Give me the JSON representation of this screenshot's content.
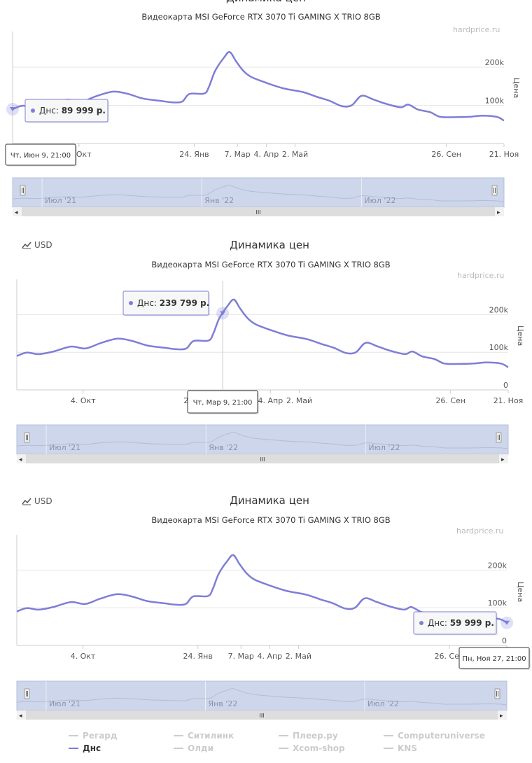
{
  "usd_label": "USD",
  "title": "Динамика цен",
  "subtitle": "Видеокарта MSI GeForce RTX 3070 Ti GAMING X TRIO 8GB",
  "credits": "hardprice.ru",
  "y_axis_title": "Цена",
  "colors": {
    "series": "#7e7ed8",
    "grid": "#e6e6e6",
    "navigator": "#cdd6ea",
    "scrollbar": "#dddddd"
  },
  "chart_data": {
    "type": "line",
    "xlabel": "",
    "ylabel": "Цена",
    "ylim": [
      0,
      290000
    ],
    "y_ticks": [
      {
        "value": 0,
        "label": "0"
      },
      {
        "value": 100000,
        "label": "100k"
      },
      {
        "value": 200000,
        "label": "200k"
      }
    ],
    "x_ticks": [
      {
        "date": "2021-10-04",
        "label": "4. Окт"
      },
      {
        "date": "2022-01-24",
        "label": "24. Янв"
      },
      {
        "date": "2022-03-07",
        "label": "7. Мар"
      },
      {
        "date": "2022-04-04",
        "label": "4. Апр"
      },
      {
        "date": "2022-05-02",
        "label": "2. Май"
      },
      {
        "date": "2022-09-26",
        "label": "26. Сен"
      },
      {
        "date": "2022-11-21",
        "label": "21. Ноя"
      }
    ],
    "navigator_labels": [
      "Июл '21",
      "Янв '22",
      "Июл '22"
    ],
    "series": [
      {
        "name": "Днс",
        "points": [
          [
            0.0,
            89999
          ],
          [
            0.02,
            99000
          ],
          [
            0.045,
            95000
          ],
          [
            0.075,
            102000
          ],
          [
            0.11,
            115000
          ],
          [
            0.14,
            110000
          ],
          [
            0.17,
            124000
          ],
          [
            0.205,
            136000
          ],
          [
            0.235,
            130000
          ],
          [
            0.265,
            118000
          ],
          [
            0.3,
            112000
          ],
          [
            0.325,
            108000
          ],
          [
            0.345,
            110000
          ],
          [
            0.36,
            130000
          ],
          [
            0.39,
            131000
          ],
          [
            0.4,
            150000
          ],
          [
            0.412,
            190000
          ],
          [
            0.43,
            225000
          ],
          [
            0.442,
            239799
          ],
          [
            0.455,
            215000
          ],
          [
            0.47,
            190000
          ],
          [
            0.485,
            175000
          ],
          [
            0.51,
            162000
          ],
          [
            0.55,
            145000
          ],
          [
            0.59,
            135000
          ],
          [
            0.62,
            122000
          ],
          [
            0.645,
            112000
          ],
          [
            0.67,
            98000
          ],
          [
            0.69,
            100000
          ],
          [
            0.71,
            125000
          ],
          [
            0.735,
            115000
          ],
          [
            0.76,
            104000
          ],
          [
            0.79,
            95000
          ],
          [
            0.805,
            102000
          ],
          [
            0.825,
            89000
          ],
          [
            0.85,
            82000
          ],
          [
            0.87,
            70000
          ],
          [
            0.9,
            69000
          ],
          [
            0.93,
            70000
          ],
          [
            0.955,
            73000
          ],
          [
            0.985,
            70000
          ],
          [
            1.0,
            59999
          ]
        ]
      }
    ],
    "tooltips": [
      {
        "date_label": "Чт, Июн 9, 21:00",
        "series": "Днс",
        "value_label": "89 999 р."
      },
      {
        "date_label": "Чт, Мар 9, 21:00",
        "series": "Днс",
        "value_label": "239 799 р."
      },
      {
        "date_label": "Пн, Ноя 27, 21:00",
        "series": "Днс",
        "value_label": "59 999 р."
      }
    ]
  },
  "legend": [
    {
      "label": "Регард",
      "active": false
    },
    {
      "label": "Ситилинк",
      "active": false
    },
    {
      "label": "Плеер.ру",
      "active": false
    },
    {
      "label": "Computeruniverse",
      "active": false
    },
    {
      "label": "Днс",
      "active": true
    },
    {
      "label": "Олди",
      "active": false
    },
    {
      "label": "Xcom-shop",
      "active": false
    },
    {
      "label": "KNS",
      "active": false
    }
  ]
}
